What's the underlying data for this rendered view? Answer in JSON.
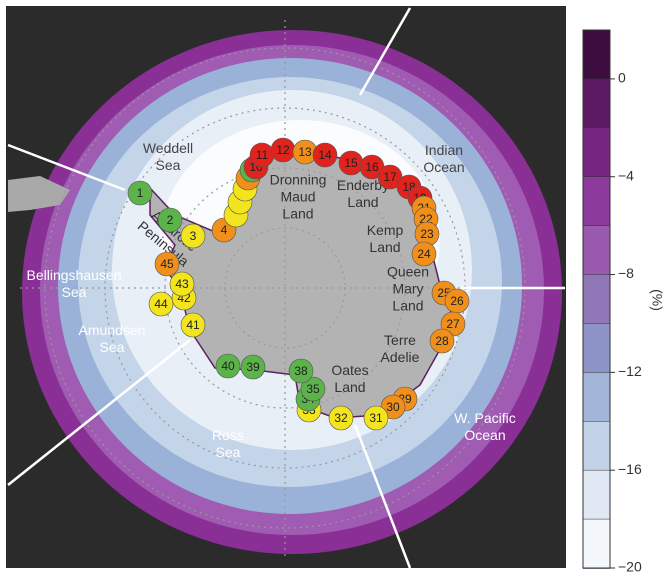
{
  "map": {
    "regions": [
      {
        "lines": [
          "Weddell",
          "Sea"
        ],
        "color": "#444"
      },
      {
        "lines": [
          "Indian",
          "Ocean"
        ],
        "color": "#444"
      },
      {
        "lines": [
          "Dronning",
          "Maud",
          "Land"
        ],
        "color": "#333"
      },
      {
        "lines": [
          "Enderby",
          "Land"
        ],
        "color": "#333"
      },
      {
        "lines": [
          "Kemp",
          "Land"
        ],
        "color": "#333"
      },
      {
        "lines": [
          "Queen",
          "Mary",
          "Land"
        ],
        "color": "#333"
      },
      {
        "lines": [
          "Terre",
          "Adelie"
        ],
        "color": "#333"
      },
      {
        "lines": [
          "Oates",
          "Land"
        ],
        "color": "#333"
      },
      {
        "lines": [
          "Ross",
          "Sea"
        ],
        "color": "#ffffff"
      },
      {
        "lines": [
          "Amundsen",
          "Sea"
        ],
        "color": "#ffffff"
      },
      {
        "lines": [
          "Bellingshausen",
          "Sea"
        ],
        "color": "#ffffff"
      },
      {
        "lines": [
          "Antarctic",
          "Peninsula"
        ],
        "color": "#333"
      },
      {
        "lines": [
          "W. Pacific",
          "Ocean"
        ],
        "color": "#ffffff"
      }
    ],
    "colonies": [
      {
        "label": "1",
        "color": "#5cb34a"
      },
      {
        "label": "2",
        "color": "#5cb34a"
      },
      {
        "label": "3",
        "color": "#f2e41d"
      },
      {
        "label": "4",
        "color": "#f18f1b"
      },
      {
        "label": null,
        "color": "#f2e41d"
      },
      {
        "label": null,
        "color": "#f2e41d"
      },
      {
        "label": null,
        "color": "#f2e41d"
      },
      {
        "label": null,
        "color": "#f18f1b"
      },
      {
        "label": null,
        "color": "#5cb34a"
      },
      {
        "label": "10",
        "color": "#e0231c"
      },
      {
        "label": "11",
        "color": "#e0231c"
      },
      {
        "label": "12",
        "color": "#e0231c"
      },
      {
        "label": "13",
        "color": "#f18f1b"
      },
      {
        "label": "14",
        "color": "#e0231c"
      },
      {
        "label": "15",
        "color": "#e0231c"
      },
      {
        "label": "16",
        "color": "#e0231c"
      },
      {
        "label": "17",
        "color": "#e0231c"
      },
      {
        "label": "18",
        "color": "#e0231c"
      },
      {
        "label": "19",
        "color": "#e0231c"
      },
      {
        "label": "21",
        "color": "#f18f1b"
      },
      {
        "label": "22",
        "color": "#f18f1b"
      },
      {
        "label": "23",
        "color": "#f18f1b"
      },
      {
        "label": "24",
        "color": "#f18f1b"
      },
      {
        "label": "25",
        "color": "#f18f1b"
      },
      {
        "label": "26",
        "color": "#f18f1b"
      },
      {
        "label": "27",
        "color": "#f18f1b"
      },
      {
        "label": "28",
        "color": "#f18f1b"
      },
      {
        "label": "29",
        "color": "#f18f1b"
      },
      {
        "label": "30",
        "color": "#f18f1b"
      },
      {
        "label": "31",
        "color": "#f2e41d"
      },
      {
        "label": "32",
        "color": "#f2e41d"
      },
      {
        "label": "33",
        "color": "#f2e41d"
      },
      {
        "label": "34",
        "color": "#5cb34a"
      },
      {
        "label": "35",
        "color": "#5cb34a"
      },
      {
        "label": "38",
        "color": "#5cb34a"
      },
      {
        "label": "39",
        "color": "#5cb34a"
      },
      {
        "label": "40",
        "color": "#5cb34a"
      },
      {
        "label": "41",
        "color": "#f2e41d"
      },
      {
        "label": "42",
        "color": "#f2e41d"
      },
      {
        "label": "43",
        "color": "#f2e41d"
      },
      {
        "label": "44",
        "color": "#f2e41d"
      },
      {
        "label": "45",
        "color": "#f18f1b"
      }
    ],
    "colorbar": {
      "lim": [
        -20,
        2
      ],
      "ticks": [
        0,
        -4,
        -8,
        -12,
        -16,
        -20
      ],
      "tick_labels": [
        "0",
        "−4",
        "−8",
        "−12",
        "−16",
        "−20"
      ],
      "label": "(%)",
      "colors": [
        "#3d0d40",
        "#5b1a62",
        "#762681",
        "#8c3a9c",
        "#9a5aae",
        "#8f77b8",
        "#8e94c7",
        "#a3b6d9",
        "#c2d3e8",
        "#dfe8f3",
        "#f4f8fc"
      ]
    }
  }
}
